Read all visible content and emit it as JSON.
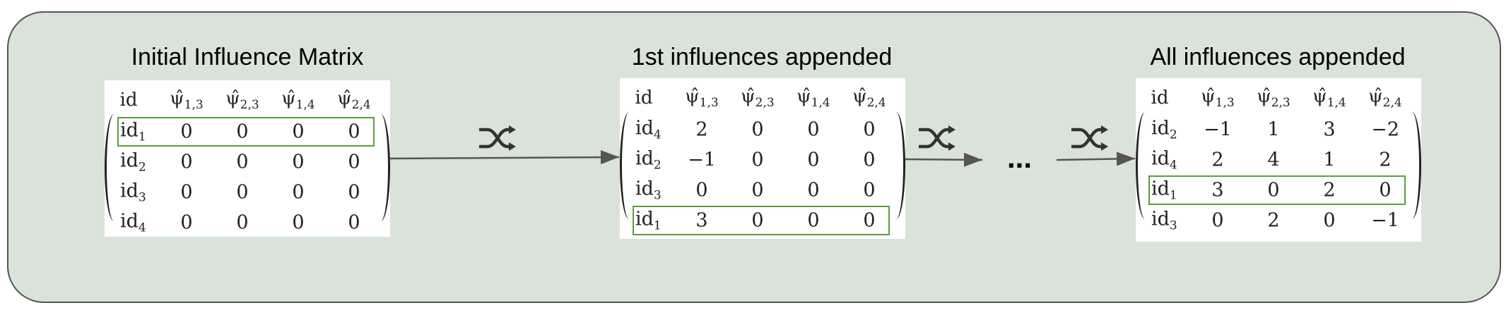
{
  "titles": {
    "m1": "Initial Influence Matrix",
    "m2": "1st influences appended",
    "m3": "All influences appended"
  },
  "header": {
    "id": "id",
    "psi": "ψ̂",
    "cols": [
      "1,3",
      "2,3",
      "1,4",
      "2,4"
    ]
  },
  "ellipsis": "...",
  "shuffle_icon": "shuffle-icon",
  "colors": {
    "panel": "#d9e3d9",
    "highlight": "#5a9e3a",
    "arrow": "#555555"
  },
  "matrices": {
    "m1": {
      "rows": [
        {
          "id": "1",
          "v": [
            "0",
            "0",
            "0",
            "0"
          ]
        },
        {
          "id": "2",
          "v": [
            "0",
            "0",
            "0",
            "0"
          ]
        },
        {
          "id": "3",
          "v": [
            "0",
            "0",
            "0",
            "0"
          ]
        },
        {
          "id": "4",
          "v": [
            "0",
            "0",
            "0",
            "0"
          ]
        }
      ],
      "highlight_row": 0
    },
    "m2": {
      "rows": [
        {
          "id": "4",
          "v": [
            "2",
            "0",
            "0",
            "0"
          ]
        },
        {
          "id": "2",
          "v": [
            "−1",
            "0",
            "0",
            "0"
          ]
        },
        {
          "id": "3",
          "v": [
            "0",
            "0",
            "0",
            "0"
          ]
        },
        {
          "id": "1",
          "v": [
            "3",
            "0",
            "0",
            "0"
          ]
        }
      ],
      "highlight_row": 3
    },
    "m3": {
      "rows": [
        {
          "id": "2",
          "v": [
            "−1",
            "1",
            "3",
            "−2"
          ]
        },
        {
          "id": "4",
          "v": [
            "2",
            "4",
            "1",
            "2"
          ]
        },
        {
          "id": "1",
          "v": [
            "3",
            "0",
            "2",
            "0"
          ]
        },
        {
          "id": "3",
          "v": [
            "0",
            "2",
            "0",
            "−1"
          ]
        }
      ],
      "highlight_row": 2
    }
  }
}
